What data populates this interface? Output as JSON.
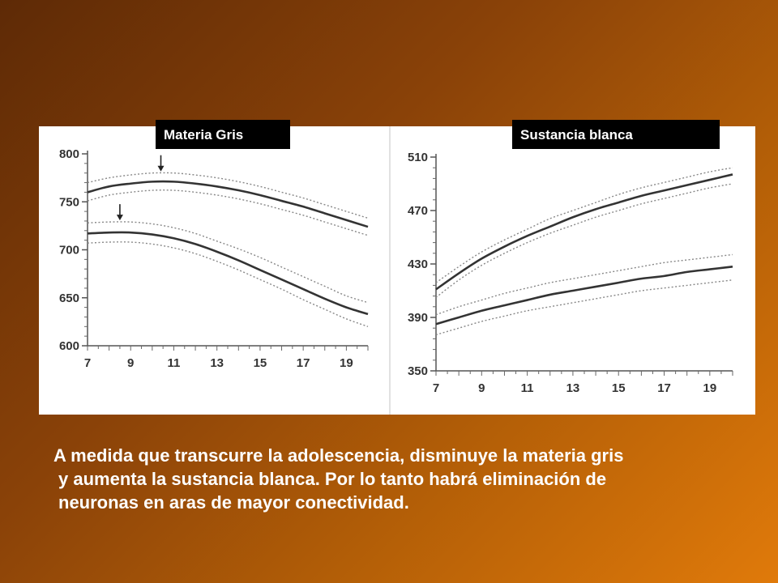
{
  "colors": {
    "background_dark": "#5e2a06",
    "background_light": "#e07a0a",
    "panel": "#ffffff",
    "tab": "#000000",
    "text": "#ffffff"
  },
  "tabs": {
    "left": "Materia Gris",
    "right": "Sustancia blanca"
  },
  "caption": {
    "line1": "A medida que transcurre la adolescencia, disminuye la materia gris",
    "line2": "y aumenta la sustancia blanca. Por lo tanto habrá eliminación de",
    "line3": "neuronas en aras de mayor conectividad."
  },
  "chart_data": [
    {
      "type": "line",
      "title": "Materia Gris",
      "xlabel": "",
      "ylabel": "",
      "xlim": [
        7,
        20
      ],
      "ylim": [
        600,
        800
      ],
      "xticks": [
        7,
        9,
        11,
        13,
        15,
        17,
        19
      ],
      "yticks": [
        600,
        650,
        700,
        750,
        800
      ],
      "grid": false,
      "series": [
        {
          "style": "solid",
          "x": [
            7,
            8,
            9,
            10,
            11,
            12,
            13,
            14,
            15,
            16,
            17,
            18,
            19,
            20
          ],
          "y": [
            760,
            766,
            769,
            771,
            771,
            769,
            766,
            762,
            757,
            751,
            745,
            738,
            731,
            724
          ]
        },
        {
          "style": "dotted",
          "x": [
            7,
            8,
            9,
            10,
            11,
            12,
            13,
            14,
            15,
            16,
            17,
            18,
            19,
            20
          ],
          "y": [
            770,
            775,
            778,
            780,
            780,
            778,
            775,
            771,
            766,
            760,
            754,
            747,
            740,
            733
          ]
        },
        {
          "style": "dotted",
          "x": [
            7,
            8,
            9,
            10,
            11,
            12,
            13,
            14,
            15,
            16,
            17,
            18,
            19,
            20
          ],
          "y": [
            751,
            757,
            760,
            762,
            762,
            760,
            757,
            753,
            748,
            742,
            736,
            729,
            722,
            715
          ]
        },
        {
          "style": "solid",
          "x": [
            7,
            8,
            9,
            10,
            11,
            12,
            13,
            14,
            15,
            16,
            17,
            18,
            19,
            20
          ],
          "y": [
            717,
            718,
            718,
            716,
            712,
            706,
            698,
            689,
            679,
            669,
            659,
            649,
            640,
            633
          ]
        },
        {
          "style": "dotted",
          "x": [
            7,
            8,
            9,
            10,
            11,
            12,
            13,
            14,
            15,
            16,
            17,
            18,
            19,
            20
          ],
          "y": [
            728,
            729,
            729,
            727,
            723,
            717,
            709,
            701,
            692,
            682,
            672,
            662,
            652,
            645
          ]
        },
        {
          "style": "dotted",
          "x": [
            7,
            8,
            9,
            10,
            11,
            12,
            13,
            14,
            15,
            16,
            17,
            18,
            19,
            20
          ],
          "y": [
            707,
            708,
            708,
            706,
            702,
            696,
            688,
            679,
            669,
            659,
            648,
            638,
            628,
            620
          ]
        }
      ],
      "markers": [
        {
          "shape": "arrow-down",
          "x": 10.4,
          "y": 780
        },
        {
          "shape": "arrow-down",
          "x": 8.5,
          "y": 729
        }
      ]
    },
    {
      "type": "line",
      "title": "Sustancia blanca",
      "xlabel": "",
      "ylabel": "",
      "xlim": [
        7,
        20
      ],
      "ylim": [
        350,
        510
      ],
      "xticks": [
        7,
        9,
        11,
        13,
        15,
        17,
        19
      ],
      "yticks": [
        350,
        390,
        430,
        470,
        510
      ],
      "grid": false,
      "series": [
        {
          "style": "solid",
          "x": [
            7,
            8,
            9,
            10,
            11,
            12,
            13,
            14,
            15,
            16,
            17,
            18,
            19,
            20
          ],
          "y": [
            411,
            423,
            434,
            443,
            451,
            458,
            465,
            471,
            476,
            481,
            485,
            489,
            493,
            497
          ]
        },
        {
          "style": "dotted",
          "x": [
            7,
            8,
            9,
            10,
            11,
            12,
            13,
            14,
            15,
            16,
            17,
            18,
            19,
            20
          ],
          "y": [
            416,
            428,
            439,
            448,
            456,
            464,
            470,
            476,
            482,
            487,
            491,
            495,
            499,
            502
          ]
        },
        {
          "style": "dotted",
          "x": [
            7,
            8,
            9,
            10,
            11,
            12,
            13,
            14,
            15,
            16,
            17,
            18,
            19,
            20
          ],
          "y": [
            405,
            418,
            429,
            438,
            446,
            453,
            459,
            465,
            470,
            475,
            479,
            483,
            487,
            490
          ]
        },
        {
          "style": "solid",
          "x": [
            7,
            8,
            9,
            10,
            11,
            12,
            13,
            14,
            15,
            16,
            17,
            18,
            19,
            20
          ],
          "y": [
            385,
            390,
            395,
            399,
            403,
            407,
            410,
            413,
            416,
            419,
            421,
            424,
            426,
            428
          ]
        },
        {
          "style": "dotted",
          "x": [
            7,
            8,
            9,
            10,
            11,
            12,
            13,
            14,
            15,
            16,
            17,
            18,
            19,
            20
          ],
          "y": [
            392,
            398,
            403,
            408,
            412,
            416,
            419,
            422,
            425,
            428,
            431,
            433,
            435,
            437
          ]
        },
        {
          "style": "dotted",
          "x": [
            7,
            8,
            9,
            10,
            11,
            12,
            13,
            14,
            15,
            16,
            17,
            18,
            19,
            20
          ],
          "y": [
            377,
            382,
            387,
            391,
            395,
            398,
            401,
            404,
            407,
            410,
            412,
            414,
            416,
            418
          ]
        }
      ],
      "markers": []
    }
  ]
}
